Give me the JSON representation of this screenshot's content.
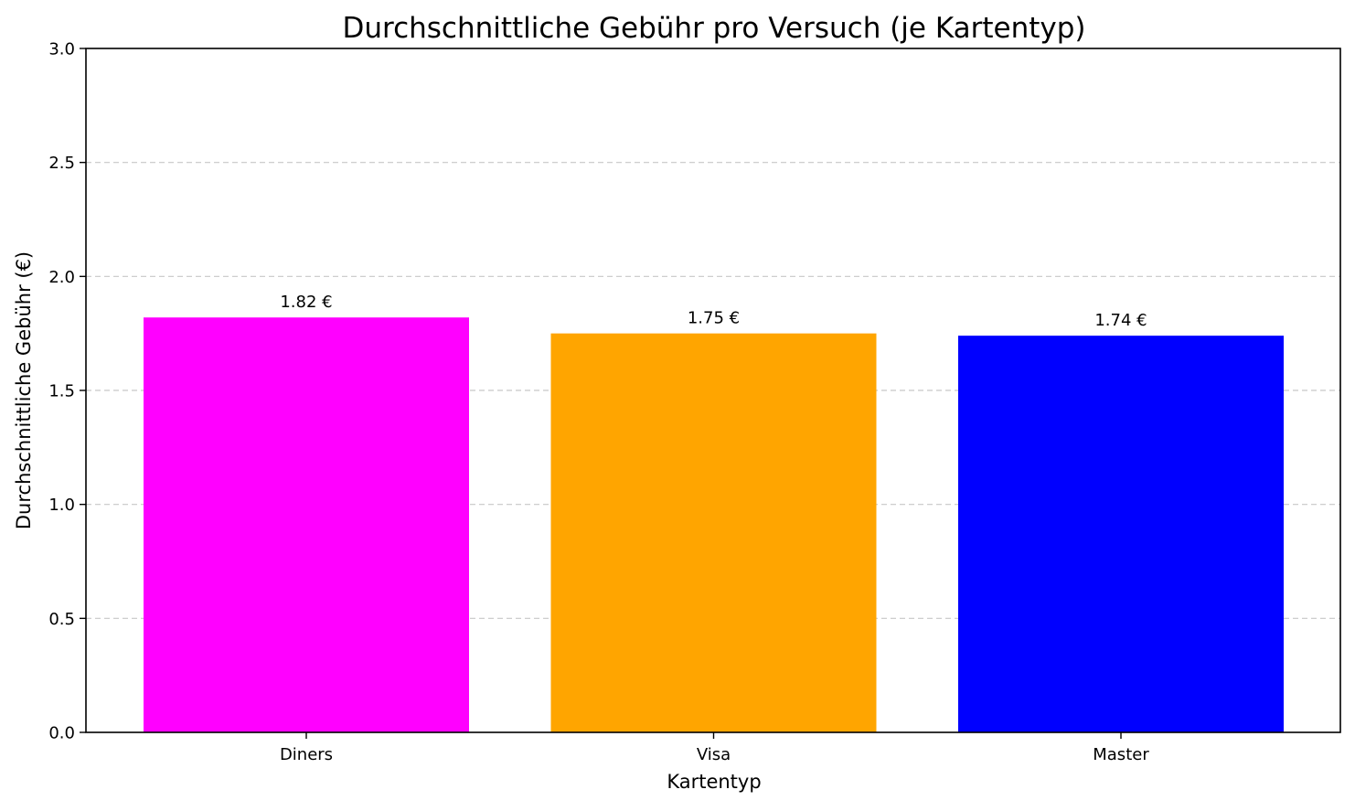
{
  "chart_data": {
    "type": "bar",
    "title": "Durchschnittliche Gebühr pro Versuch (je Kartentyp)",
    "xlabel": "Kartentyp",
    "ylabel": "Durchschnittliche Gebühr (€)",
    "categories": [
      "Diners",
      "Visa",
      "Master"
    ],
    "values": [
      1.82,
      1.75,
      1.74
    ],
    "value_labels": [
      "1.82 €",
      "1.75 €",
      "1.74 €"
    ],
    "colors": [
      "#ff00ff",
      "#ffa500",
      "#0000ff"
    ],
    "ylim": [
      0,
      3.0
    ],
    "yticks": [
      0.0,
      0.5,
      1.0,
      1.5,
      2.0,
      2.5,
      3.0
    ],
    "ytick_labels": [
      "0.0",
      "0.5",
      "1.0",
      "1.5",
      "2.0",
      "2.5",
      "3.0"
    ],
    "grid": {
      "axis": "y",
      "style": "dashed",
      "color": "#c8c8c8"
    },
    "legend": "none"
  }
}
